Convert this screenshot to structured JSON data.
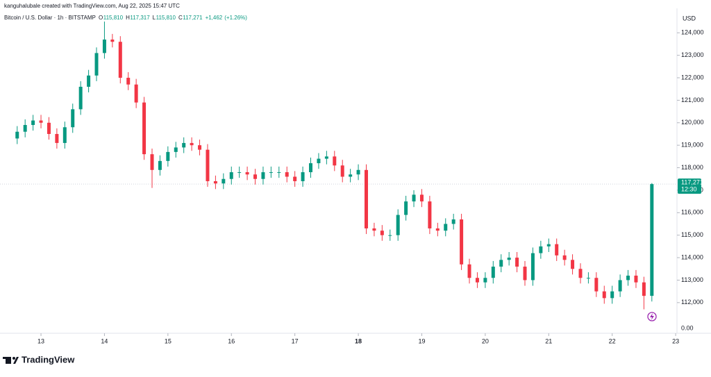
{
  "chart_data": {
    "type": "candlestick",
    "attribution": "kanguhalubale created with TradingView.com, Aug 22, 2025 15:47 UTC",
    "symbol": "Bitcoin / U.S. Dollar · 1h · BITSTAMP",
    "legend": [
      {
        "key": "O",
        "value": 115810,
        "label": "115,810"
      },
      {
        "key": "H",
        "value": 117317,
        "label": "117,317"
      },
      {
        "key": "L",
        "value": 115810,
        "label": "115,810"
      },
      {
        "key": "C",
        "value": 117271,
        "label": "117,271"
      }
    ],
    "change": {
      "value": 1462,
      "label": "+1,462"
    },
    "change_pct": {
      "value": 1.26,
      "label": "(+1.26%)"
    },
    "currency": "USD",
    "brand": "TradingView",
    "up_color": "#089981",
    "down_color": "#f23645",
    "last_price": {
      "value": 117271,
      "label": "117,271"
    },
    "countdown": "12:30",
    "lower_axis_label": {
      "value": 0,
      "label": "0.00"
    },
    "grid": false,
    "xlim": [
      -15.5,
      240.5
    ],
    "xticks": [
      {
        "value": 0,
        "label": "13"
      },
      {
        "value": 24,
        "label": "14"
      },
      {
        "value": 48,
        "label": "15"
      },
      {
        "value": 72,
        "label": "16"
      },
      {
        "value": 96,
        "label": "17"
      },
      {
        "value": 120,
        "label": "18",
        "bold": true
      },
      {
        "value": 144,
        "label": "19"
      },
      {
        "value": 168,
        "label": "20"
      },
      {
        "value": 192,
        "label": "21"
      },
      {
        "value": 216,
        "label": "22"
      },
      {
        "value": 240,
        "label": "23"
      }
    ],
    "ylim": [
      111100,
      125150
    ],
    "yticks": [
      {
        "value": 112000,
        "label": "112,000"
      },
      {
        "value": 113000,
        "label": "113,000"
      },
      {
        "value": 114000,
        "label": "114,000"
      },
      {
        "value": 115000,
        "label": "115,000"
      },
      {
        "value": 116000,
        "label": "116,000"
      },
      {
        "value": 117000,
        "label": "117,000"
      },
      {
        "value": 118000,
        "label": "118,000"
      },
      {
        "value": 119000,
        "label": "119,000"
      },
      {
        "value": 120000,
        "label": "120,000"
      },
      {
        "value": 121000,
        "label": "121,000"
      },
      {
        "value": 122000,
        "label": "122,000"
      },
      {
        "value": 123000,
        "label": "123,000"
      },
      {
        "value": 124000,
        "label": "124,000"
      }
    ],
    "x": [
      -9,
      -6,
      -3,
      0,
      3,
      6,
      9,
      12,
      15,
      18,
      21,
      24,
      27,
      30,
      33,
      36,
      39,
      42,
      45,
      48,
      51,
      54,
      57,
      60,
      63,
      66,
      69,
      72,
      75,
      78,
      81,
      84,
      87,
      90,
      93,
      96,
      99,
      102,
      105,
      108,
      111,
      114,
      117,
      120,
      123,
      126,
      129,
      132,
      135,
      138,
      141,
      144,
      147,
      150,
      153,
      156,
      159,
      162,
      165,
      168,
      171,
      174,
      177,
      180,
      183,
      186,
      189,
      192,
      195,
      198,
      201,
      204,
      207,
      210,
      213,
      216,
      219,
      222,
      225,
      228,
      231
    ],
    "open": [
      119300,
      119600,
      119900,
      120100,
      120000,
      119500,
      119100,
      119800,
      120600,
      121600,
      122100,
      123100,
      123700,
      123600,
      122000,
      121700,
      120900,
      118600,
      117900,
      118300,
      118700,
      118900,
      119100,
      119000,
      118800,
      117400,
      117300,
      117500,
      117800,
      117800,
      117700,
      117500,
      117800,
      117800,
      117800,
      117600,
      117400,
      117800,
      118200,
      118400,
      118500,
      118100,
      117600,
      117700,
      117900,
      115300,
      115200,
      115000,
      115000,
      115900,
      116500,
      116800,
      116500,
      115300,
      115200,
      115500,
      115700,
      113700,
      113100,
      112900,
      113100,
      113600,
      113900,
      114000,
      113600,
      113000,
      114200,
      114500,
      114600,
      114100,
      113900,
      113500,
      113100,
      113100,
      112500,
      112200,
      112500,
      113000,
      113200,
      112900,
      112300
    ],
    "high": [
      119850,
      120150,
      120350,
      120350,
      120250,
      119750,
      120050,
      120850,
      121850,
      122350,
      123350,
      124500,
      123950,
      123850,
      122250,
      121950,
      121150,
      118850,
      118550,
      118950,
      119150,
      119350,
      119350,
      119250,
      119050,
      117650,
      117750,
      118050,
      118050,
      118050,
      117950,
      118050,
      118050,
      118050,
      118050,
      117850,
      118050,
      118450,
      118650,
      118750,
      118750,
      118350,
      117950,
      118150,
      118150,
      115550,
      115450,
      115250,
      116150,
      116750,
      117000,
      117050,
      116750,
      115550,
      115750,
      115950,
      115950,
      113950,
      113350,
      113350,
      113850,
      114150,
      114250,
      114250,
      113850,
      114450,
      114750,
      114850,
      114850,
      114350,
      114150,
      113750,
      113350,
      113350,
      112750,
      112750,
      113250,
      113450,
      113450,
      113150,
      117317
    ],
    "low": [
      119050,
      119350,
      119650,
      119750,
      119250,
      118850,
      118850,
      119550,
      120350,
      121350,
      121850,
      122850,
      123350,
      121750,
      121450,
      120650,
      118350,
      117100,
      117650,
      118050,
      118450,
      118650,
      118750,
      118550,
      117150,
      117050,
      117050,
      117250,
      117550,
      117450,
      117250,
      117250,
      117550,
      117550,
      117350,
      117150,
      117150,
      117550,
      117950,
      118150,
      117850,
      117350,
      117350,
      117450,
      115050,
      114950,
      114750,
      114750,
      114750,
      115650,
      116250,
      116250,
      115050,
      114950,
      114950,
      115250,
      113450,
      112850,
      112650,
      112650,
      112850,
      113350,
      113650,
      113350,
      112750,
      112750,
      113950,
      114250,
      113850,
      113650,
      113250,
      112850,
      112850,
      112250,
      111950,
      111950,
      112250,
      112750,
      112650,
      111700,
      112050
    ],
    "close": [
      119600,
      119900,
      120100,
      120000,
      119500,
      119100,
      119800,
      120600,
      121600,
      122100,
      123100,
      123700,
      123600,
      122000,
      121700,
      120900,
      118600,
      117900,
      118300,
      118700,
      118900,
      119100,
      119000,
      118800,
      117400,
      117300,
      117500,
      117800,
      117800,
      117700,
      117500,
      117800,
      117800,
      117800,
      117600,
      117400,
      117800,
      118200,
      118400,
      118500,
      118100,
      117600,
      117700,
      117900,
      115300,
      115200,
      115000,
      115000,
      115900,
      116500,
      116800,
      116500,
      115300,
      115200,
      115500,
      115700,
      113700,
      113100,
      112900,
      113100,
      113600,
      113900,
      114000,
      113600,
      113000,
      114200,
      114500,
      114600,
      114100,
      113900,
      113500,
      113100,
      113100,
      112500,
      112200,
      112500,
      113000,
      113200,
      112900,
      112300,
      117271
    ]
  }
}
